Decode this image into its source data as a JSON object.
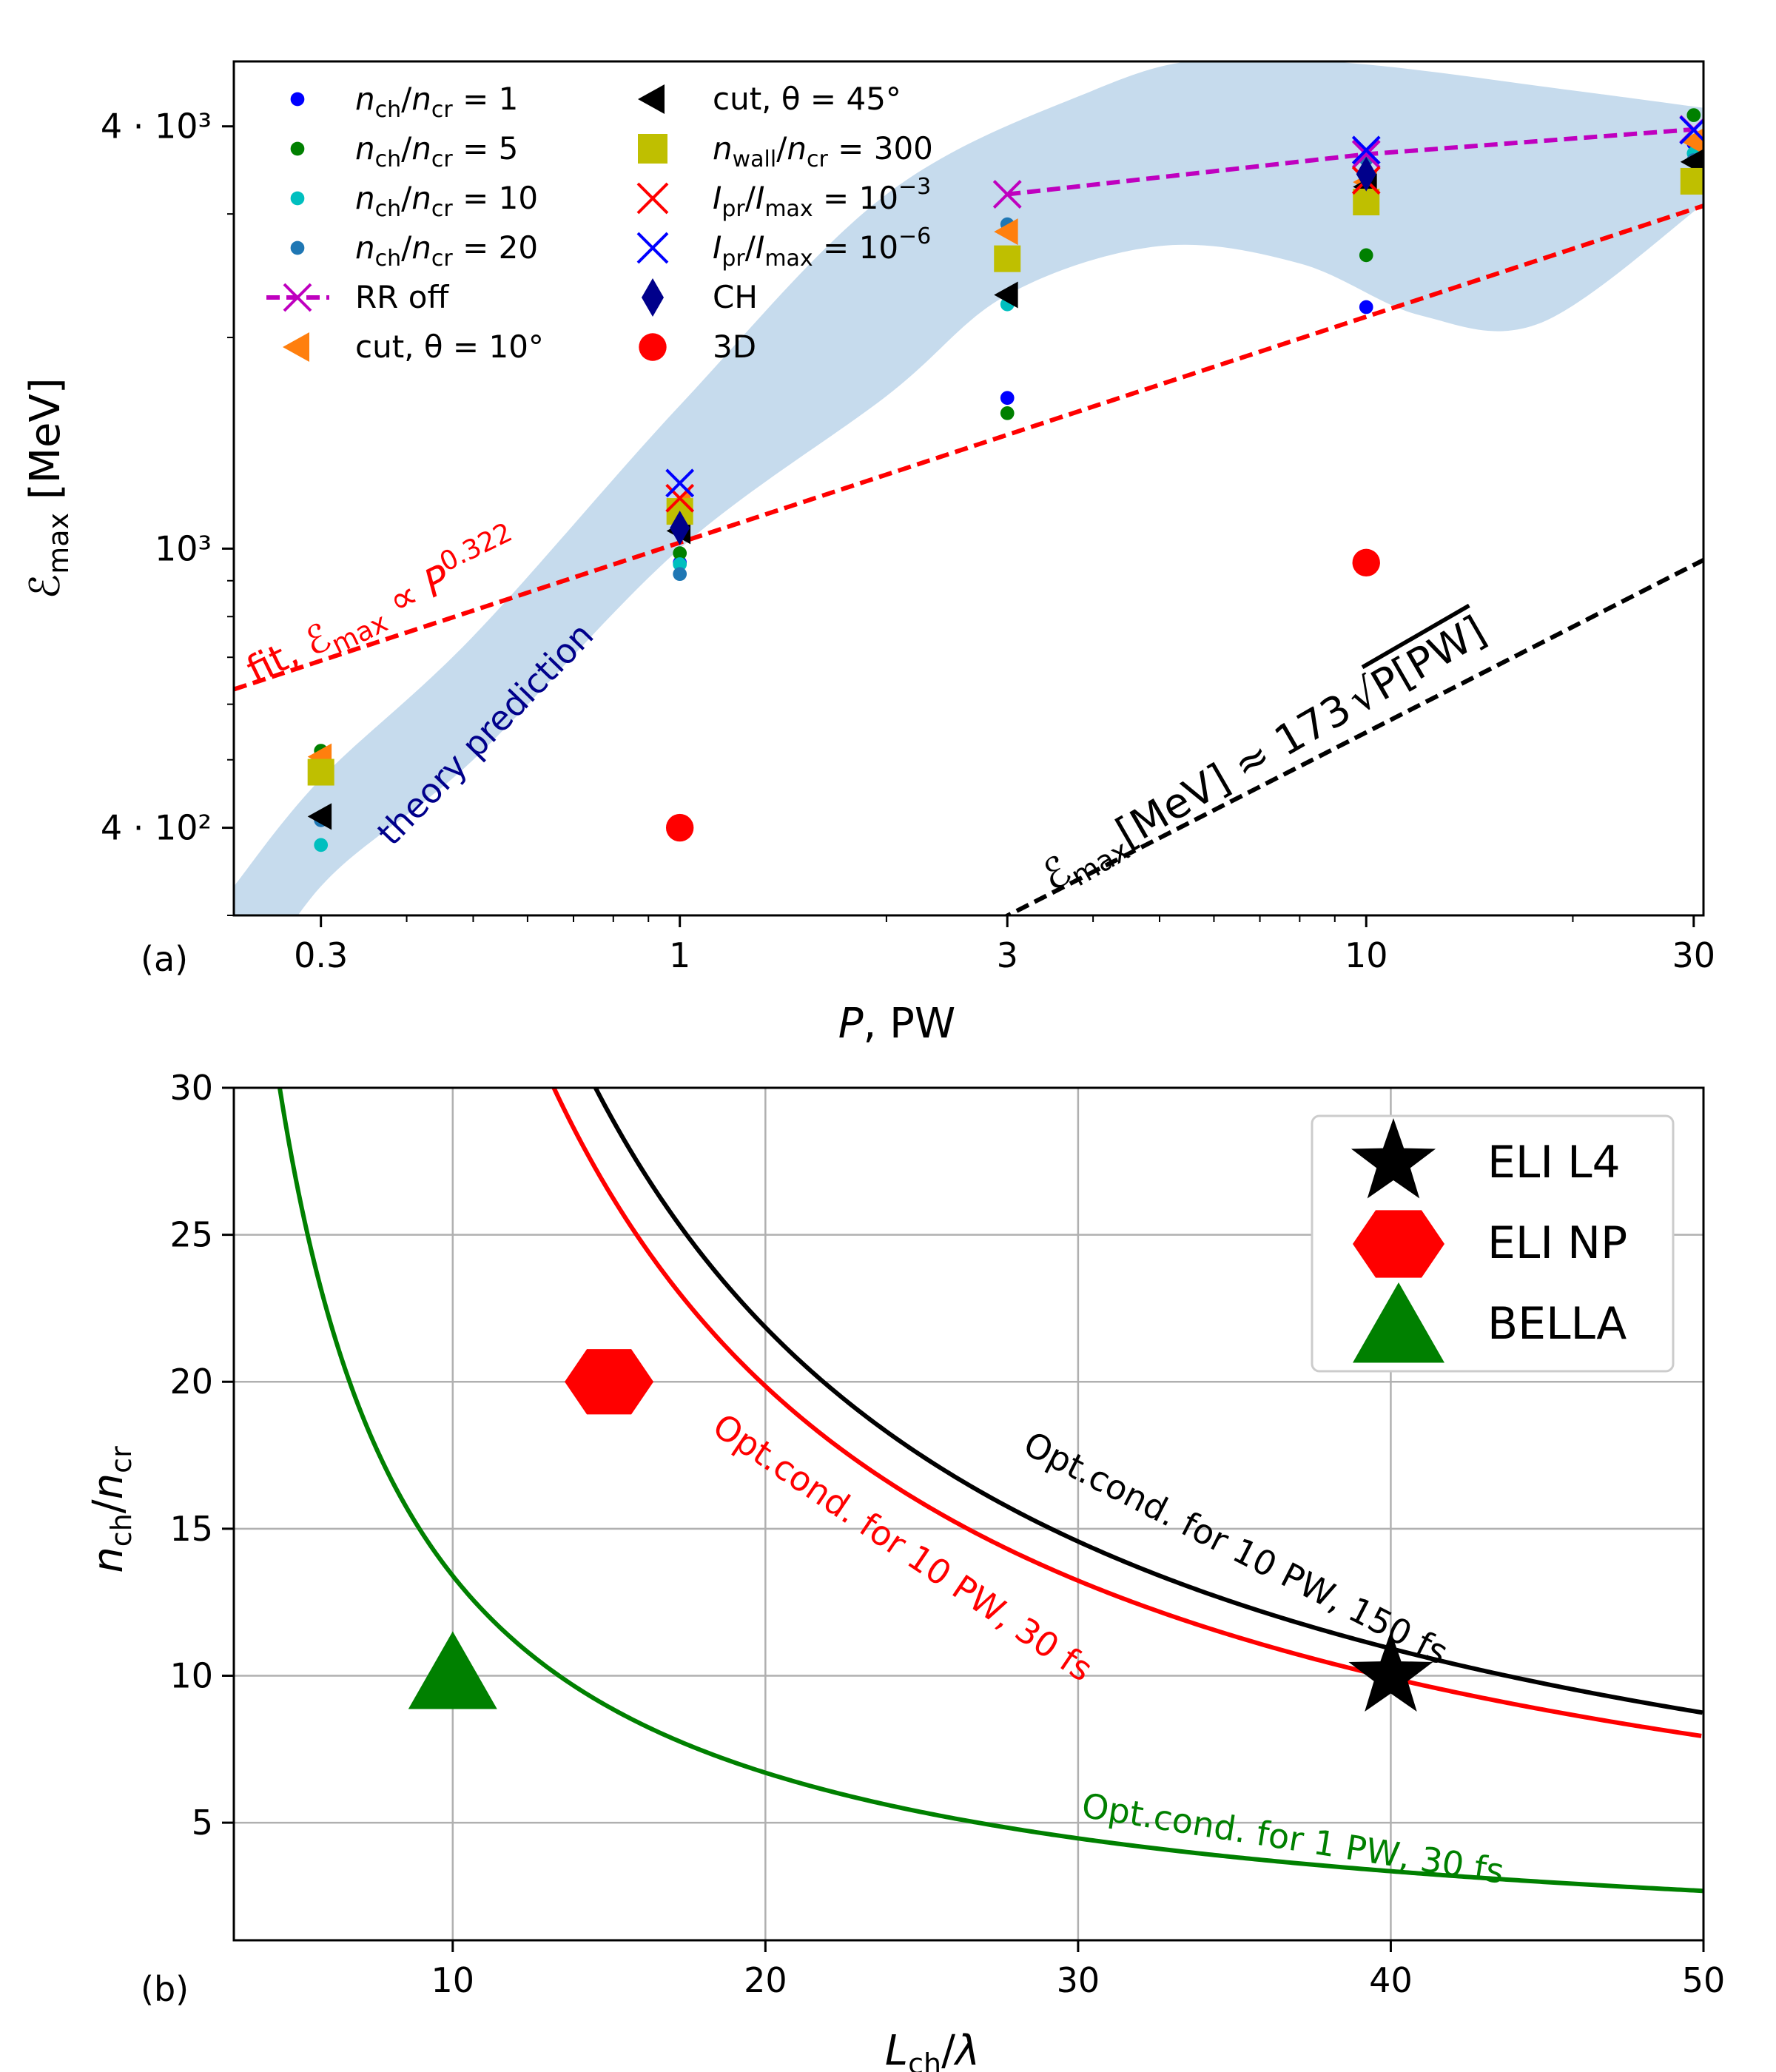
{
  "chart_data": [
    {
      "panel_label": "(a)",
      "type": "scatter",
      "xscale": "log",
      "yscale": "log",
      "xlim": [
        0.224,
        31.0
      ],
      "ylim": [
        300,
        4950
      ],
      "xlabel": "P, PW",
      "ylabel": "ℰmax [MeV]",
      "xticks": [
        {
          "value": 0.3,
          "label": "0.3"
        },
        {
          "value": 1,
          "label": "1"
        },
        {
          "value": 3,
          "label": "3"
        },
        {
          "value": 10,
          "label": "10"
        },
        {
          "value": 30,
          "label": "30"
        }
      ],
      "yticks": [
        {
          "value": 400,
          "label": "4 · 10²"
        },
        {
          "value": 1000,
          "label": "10³"
        },
        {
          "value": 4000,
          "label": "4 · 10³"
        }
      ],
      "series": [
        {
          "name": "n_ch/n_cr = 1",
          "marker": "dot",
          "color": "#0000ff",
          "points": [
            [
              0.3,
              475
            ],
            [
              1,
              955
            ],
            [
              3,
              1640
            ],
            [
              10,
              2210
            ],
            [
              30,
              3780
            ]
          ]
        },
        {
          "name": "n_ch/n_cr = 5",
          "marker": "dot",
          "color": "#008000",
          "points": [
            [
              0.3,
              515
            ],
            [
              1,
              985
            ],
            [
              3,
              1560
            ],
            [
              10,
              2620
            ],
            [
              30,
              4150
            ]
          ]
        },
        {
          "name": "n_ch/n_cr = 10",
          "marker": "dot",
          "color": "#00bfbf",
          "points": [
            [
              0.3,
              378
            ],
            [
              1,
              950
            ],
            [
              3,
              2230
            ],
            [
              10,
              3220
            ],
            [
              30,
              3660
            ]
          ]
        },
        {
          "name": "n_ch/n_cr = 20",
          "marker": "dot",
          "color": "#1f77b4",
          "points": [
            [
              0.3,
              410
            ],
            [
              1,
              920
            ],
            [
              3,
              2900
            ],
            [
              10,
              3590
            ],
            [
              30,
              3580
            ]
          ]
        },
        {
          "name": "RR off",
          "marker": "x-line",
          "color": "#bf00bf",
          "dashed": true,
          "points": [
            [
              3,
              3200
            ],
            [
              10,
              3650
            ],
            [
              30,
              3960
            ]
          ]
        },
        {
          "name": "cut, θ = 10°",
          "marker": "triangle-left",
          "color": "#ff7f0e",
          "points": [
            [
              0.3,
              505
            ],
            [
              1,
              1160
            ],
            [
              3,
              2830
            ],
            [
              10,
              3330
            ],
            [
              30,
              3810
            ]
          ]
        },
        {
          "name": "cut, θ = 45°",
          "marker": "triangle-left",
          "color": "#000000",
          "points": [
            [
              0.3,
              415
            ],
            [
              1,
              1060
            ],
            [
              3,
              2300
            ],
            [
              10,
              3280
            ],
            [
              30,
              3560
            ]
          ]
        },
        {
          "name": "n_wall/n_cr = 300",
          "marker": "square",
          "color": "#bfbf00",
          "points": [
            [
              0.3,
              480
            ],
            [
              1,
              1130
            ],
            [
              3,
              2590
            ],
            [
              10,
              3120
            ],
            [
              30,
              3340
            ]
          ]
        },
        {
          "name": "I_pr/I_max = 10⁻³",
          "marker": "x",
          "color": "#ff0000",
          "points": [
            [
              1,
              1180
            ],
            [
              10,
              3350
            ]
          ]
        },
        {
          "name": "I_pr/I_max = 10⁻⁶",
          "marker": "x",
          "color": "#0000ff",
          "points": [
            [
              1,
              1240
            ],
            [
              10,
              3700
            ],
            [
              30,
              3950
            ]
          ]
        },
        {
          "name": "CH",
          "marker": "diamond",
          "color": "#00008b",
          "points": [
            [
              1,
              1070
            ],
            [
              10,
              3420
            ]
          ]
        },
        {
          "name": "3D",
          "marker": "big-dot",
          "color": "#ff0000",
          "points": [
            [
              1,
              400
            ],
            [
              10,
              955
            ]
          ]
        }
      ],
      "lines": [
        {
          "name": "fit",
          "coef": 1020,
          "exponent": 0.322,
          "color": "#ff0000",
          "dashed": true
        },
        {
          "name": "sqrt scaling",
          "coef": 173,
          "exponent": 0.5,
          "color": "#000000",
          "dashed": true
        }
      ],
      "band": {
        "upper": [
          [
            0.224,
            330
          ],
          [
            0.3,
            470
          ],
          [
            0.5,
            750
          ],
          [
            1,
            1600
          ],
          [
            2,
            3200
          ],
          [
            4,
            4500
          ],
          [
            6,
            5000
          ],
          [
            10,
            4900
          ],
          [
            20,
            4500
          ],
          [
            31,
            4250
          ]
        ],
        "lower": [
          [
            0.224,
            210
          ],
          [
            0.3,
            330
          ],
          [
            0.5,
            500
          ],
          [
            1,
            1000
          ],
          [
            2,
            1650
          ],
          [
            3,
            2300
          ],
          [
            5,
            2700
          ],
          [
            8,
            2550
          ],
          [
            12,
            2150
          ],
          [
            18,
            2100
          ],
          [
            31,
            3100
          ]
        ],
        "color": "#c6dbed"
      },
      "annotations": [
        {
          "text_prefix": "fit, ℰ",
          "sub": "max",
          "suffix": " ∝ P",
          "sup": "0.322",
          "color": "#ff0000"
        },
        {
          "text": "theory prediction",
          "color": "#00008b"
        },
        {
          "text_prefix": "ℰ",
          "sub": "max",
          "suffix": "[MeV] ≈ 173",
          "sqrt": "P[PW]",
          "color": "#000000"
        }
      ],
      "legend": {
        "placement": "upper-left",
        "col1": [
          {
            "pre": "n",
            "sub": "ch",
            "mid": "/n",
            "sub2": "cr",
            "post": " = 1"
          },
          {
            "pre": "n",
            "sub": "ch",
            "mid": "/n",
            "sub2": "cr",
            "post": " = 5"
          },
          {
            "pre": "n",
            "sub": "ch",
            "mid": "/n",
            "sub2": "cr",
            "post": " = 10"
          },
          {
            "pre": "n",
            "sub": "ch",
            "mid": "/n",
            "sub2": "cr",
            "post": " = 20"
          },
          {
            "pre": "RR off"
          },
          {
            "pre": "cut, θ = 10°"
          }
        ],
        "col2": [
          {
            "pre": "cut, θ = 45°"
          },
          {
            "pre": "n",
            "sub": "wall",
            "mid": "/n",
            "sub2": "cr",
            "post": " = 300"
          },
          {
            "pre": "I",
            "sub": "pr",
            "mid": "/I",
            "sub2": "max",
            "post": " = 10",
            "sup": "−3"
          },
          {
            "pre": "I",
            "sub": "pr",
            "mid": "/I",
            "sub2": "max",
            "post": " = 10",
            "sup": "−6"
          },
          {
            "pre": "CH"
          },
          {
            "pre": "3D"
          }
        ]
      }
    },
    {
      "panel_label": "(b)",
      "type": "line",
      "xlim": [
        3,
        50
      ],
      "ylim": [
        1,
        30
      ],
      "xlabel": "Lch/λ",
      "ylabel": "nch/ncr",
      "xticks": [
        10,
        20,
        30,
        40,
        50
      ],
      "yticks": [
        5,
        10,
        15,
        20,
        25,
        30
      ],
      "grid": true,
      "series": [
        {
          "name": "Opt.cond. for 10 PW, 150 fs",
          "k": 437,
          "color": "#000000"
        },
        {
          "name": "Opt.cond. for 10 PW, 30 fs",
          "k": 397,
          "color": "#ff0000"
        },
        {
          "name": "Opt.cond. for 1 PW, 30 fs",
          "k": 134,
          "color": "#008000"
        }
      ],
      "points": [
        {
          "name": "ELI L4",
          "x": 40,
          "y": 10,
          "marker": "star",
          "color": "#000000"
        },
        {
          "name": "ELI NP",
          "x": 15,
          "y": 20,
          "marker": "hexagon",
          "color": "#ff0000"
        },
        {
          "name": "BELLA",
          "x": 10,
          "y": 10,
          "marker": "triangle",
          "color": "#008000"
        }
      ],
      "legend": {
        "placement": "upper-right",
        "entries": [
          "ELI L4",
          "ELI NP",
          "BELLA"
        ]
      }
    }
  ]
}
